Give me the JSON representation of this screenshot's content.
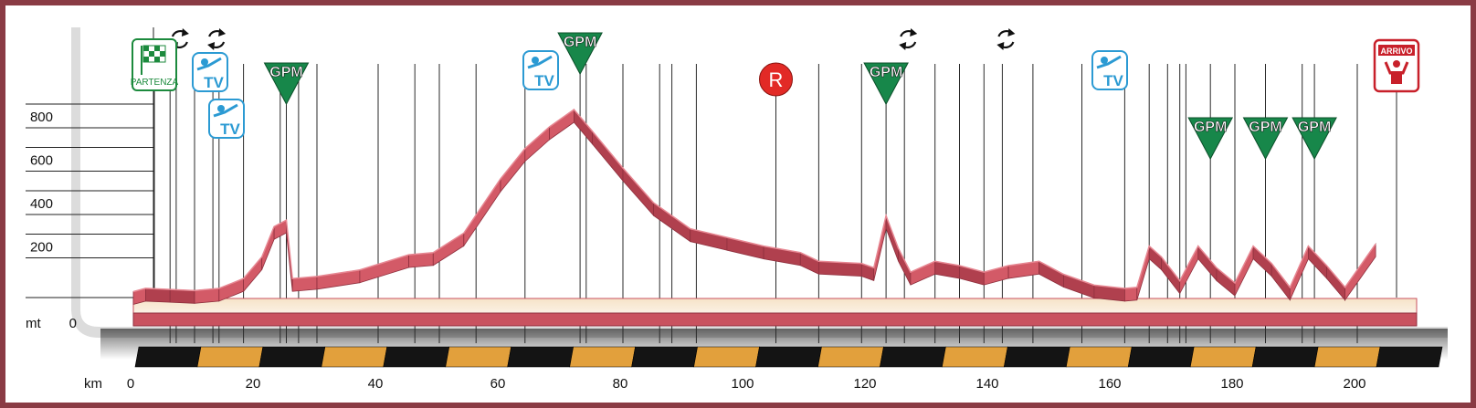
{
  "chart_data": {
    "type": "area",
    "title": "",
    "xlabel": "km",
    "ylabel": "mt",
    "xlim": [
      0,
      203
    ],
    "ylim": [
      0,
      900
    ],
    "x_ticks": [
      "0",
      "20",
      "40",
      "60",
      "80",
      "100",
      "120",
      "140",
      "160",
      "180",
      "200"
    ],
    "y_ticks": [
      "0",
      "200",
      "400",
      "600",
      "800"
    ],
    "grid": "horizontal",
    "series": [
      {
        "values": [
          [
            0,
            40
          ],
          [
            2,
            55
          ],
          [
            6,
            50
          ],
          [
            10,
            45
          ],
          [
            14,
            55
          ],
          [
            18,
            100
          ],
          [
            21,
            200
          ],
          [
            23,
            340
          ],
          [
            25,
            370
          ],
          [
            26,
            100
          ],
          [
            30,
            110
          ],
          [
            37,
            140
          ],
          [
            45,
            210
          ],
          [
            49,
            220
          ],
          [
            54,
            310
          ],
          [
            60,
            560
          ],
          [
            64,
            700
          ],
          [
            68,
            800
          ],
          [
            72,
            880
          ],
          [
            75,
            780
          ],
          [
            80,
            610
          ],
          [
            85,
            450
          ],
          [
            91,
            330
          ],
          [
            97,
            290
          ],
          [
            103,
            250
          ],
          [
            109,
            220
          ],
          [
            112,
            180
          ],
          [
            119,
            170
          ],
          [
            121,
            150
          ],
          [
            123,
            390
          ],
          [
            125,
            240
          ],
          [
            127,
            130
          ],
          [
            131,
            180
          ],
          [
            135,
            160
          ],
          [
            139,
            130
          ],
          [
            143,
            160
          ],
          [
            148,
            180
          ],
          [
            152,
            120
          ],
          [
            157,
            70
          ],
          [
            162,
            55
          ],
          [
            164,
            60
          ],
          [
            166,
            250
          ],
          [
            168,
            200
          ],
          [
            171,
            90
          ],
          [
            174,
            250
          ],
          [
            177,
            150
          ],
          [
            180,
            80
          ],
          [
            183,
            250
          ],
          [
            186,
            170
          ],
          [
            189,
            60
          ],
          [
            192,
            250
          ],
          [
            195,
            160
          ],
          [
            198,
            60
          ],
          [
            203,
            260
          ]
        ]
      }
    ],
    "markers": [
      {
        "type": "start",
        "label": "PARTENZA",
        "x": 0
      },
      {
        "type": "sprint",
        "label": "TV",
        "x": 10
      },
      {
        "type": "sprint",
        "label": "TV",
        "x": 13
      },
      {
        "type": "gpm",
        "label": "GPM",
        "x": 25
      },
      {
        "type": "sprint",
        "label": "TV",
        "x": 64
      },
      {
        "type": "gpm",
        "label": "GPM",
        "x": 73
      },
      {
        "type": "refuel",
        "label": "R",
        "x": 105
      },
      {
        "type": "gpm",
        "label": "GPM",
        "x": 123
      },
      {
        "type": "sprint",
        "label": "TV",
        "x": 155
      },
      {
        "type": "gpm",
        "label": "GPM",
        "x": 176
      },
      {
        "type": "gpm",
        "label": "GPM",
        "x": 185
      },
      {
        "type": "gpm",
        "label": "GPM",
        "x": 193
      },
      {
        "type": "finish",
        "label": "ARRIVO",
        "x": 203
      }
    ],
    "circular_arrows_x": [
      7,
      13,
      126,
      142
    ],
    "vertical_lines_x": [
      6,
      7,
      10,
      13,
      14,
      18,
      24,
      25,
      27,
      30,
      40,
      46,
      50,
      56,
      64,
      73,
      74,
      80,
      86,
      88,
      92,
      105,
      112,
      119,
      123,
      126,
      131,
      135,
      139,
      142,
      147,
      155,
      162,
      166,
      169,
      171,
      172,
      176,
      180,
      185,
      191,
      193,
      200
    ],
    "km_bar_segments": 21,
    "colors": {
      "profile": "#c9525f",
      "profile_dark": "#8e2f3d",
      "frame": "#8a3b44",
      "gpm": "#17874a",
      "sprint": "#2b9ad3",
      "refuel": "#e22a26",
      "finish": "#c8202a",
      "km_black": "#141414",
      "km_orange": "#e2a03c"
    }
  }
}
